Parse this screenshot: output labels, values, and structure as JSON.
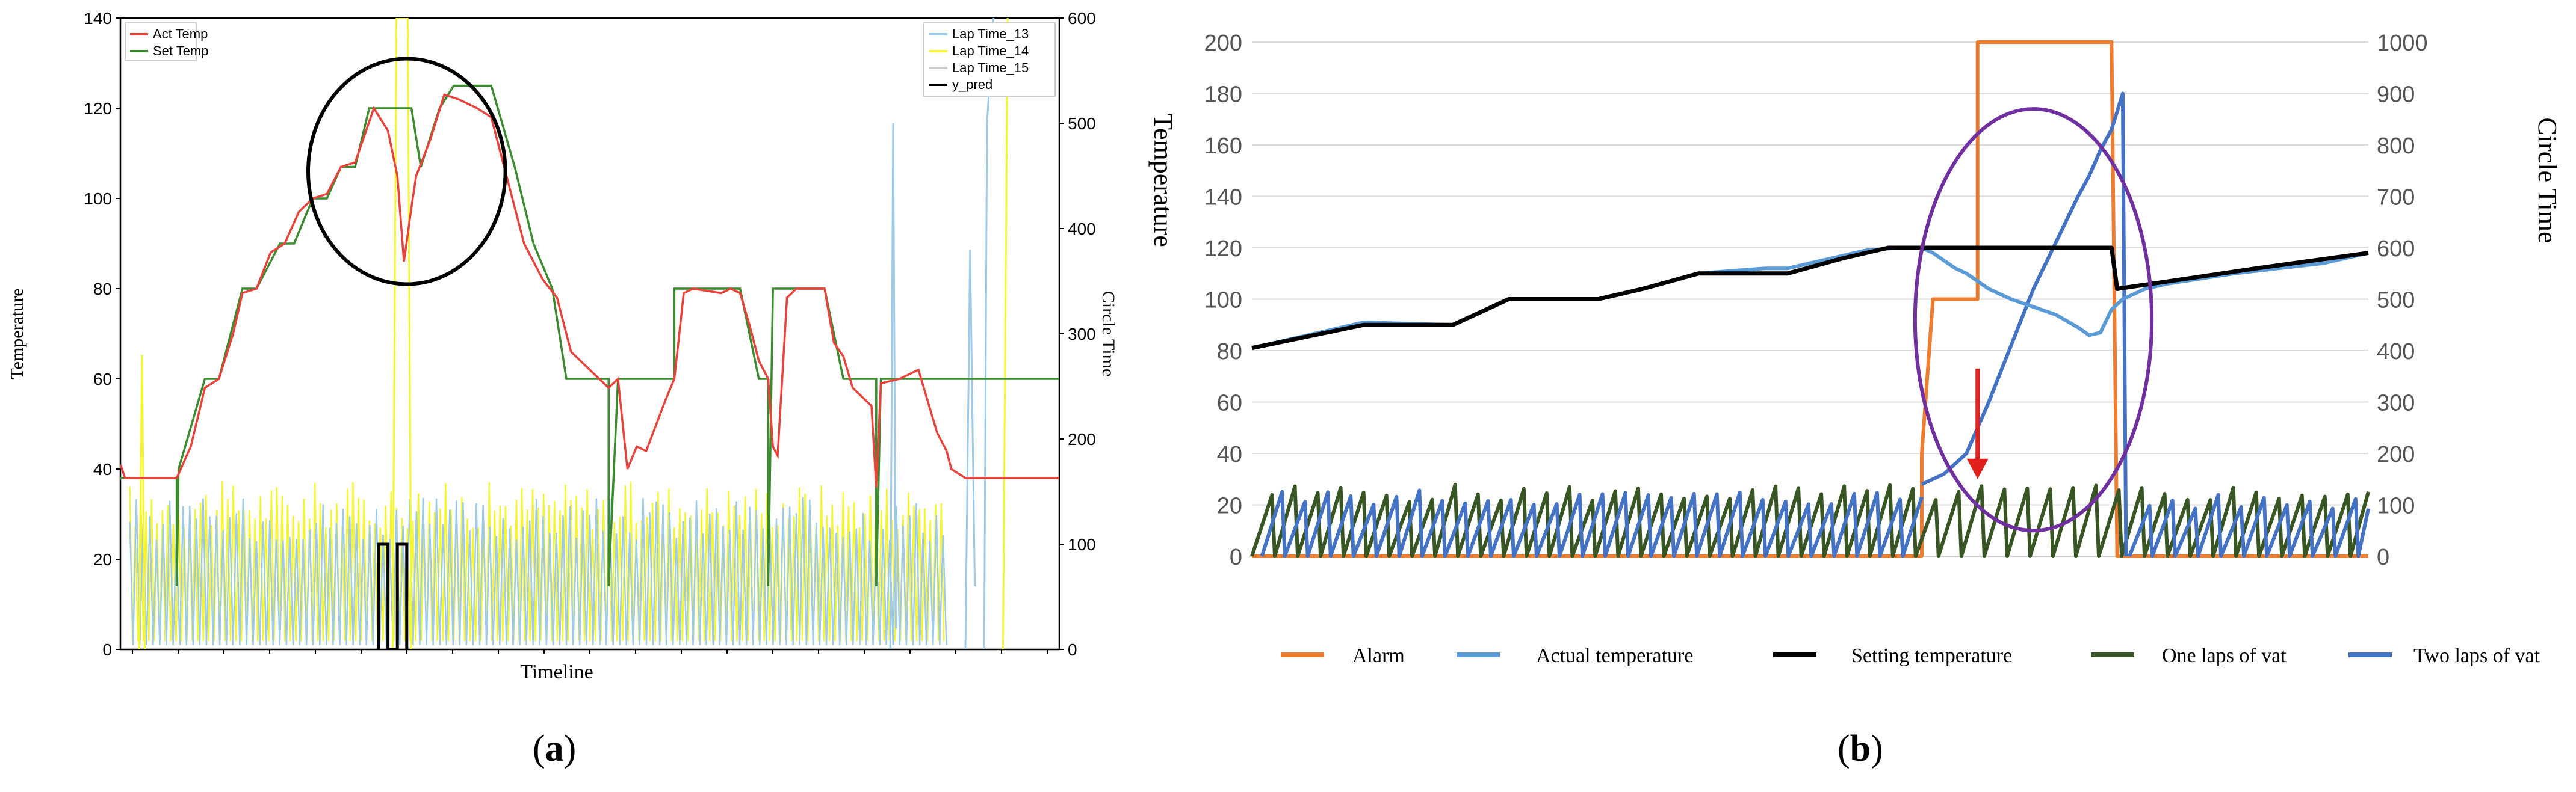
{
  "captions": {
    "a": "a",
    "b": "b"
  },
  "chart_data": [
    {
      "panel": "a",
      "type": "line",
      "xlabel": "Timeline",
      "ylabel": "Temperature",
      "ylabel_right": "Circle Time",
      "ylim": [
        0,
        140
      ],
      "ylim_right": [
        0,
        600
      ],
      "yticks": [
        0,
        20,
        40,
        60,
        80,
        100,
        120,
        140
      ],
      "yticks_right": [
        0,
        100,
        200,
        300,
        400,
        500,
        600
      ],
      "xlim": [
        0,
        100
      ],
      "legend_left": [
        {
          "name": "Act Temp",
          "color": "#e8423a"
        },
        {
          "name": "Set Temp",
          "color": "#3a8a2e"
        }
      ],
      "legend_right": [
        {
          "name": "Lap Time_13",
          "color": "#9ecae9"
        },
        {
          "name": "Lap Time_14",
          "color": "#f5f530"
        },
        {
          "name": "Lap Time_15",
          "color": "#cccccc"
        },
        {
          "name": "y_pred",
          "color": "#000000"
        }
      ],
      "series": [
        {
          "name": "Set Temp",
          "color": "#3a8a2e",
          "axis": "left",
          "points": [
            [
              0,
              38
            ],
            [
              6,
              38
            ],
            [
              6,
              14
            ],
            [
              6.2,
              40
            ],
            [
              9,
              60
            ],
            [
              10.5,
              60
            ],
            [
              13,
              80
            ],
            [
              14.5,
              80
            ],
            [
              17,
              90
            ],
            [
              18.5,
              90
            ],
            [
              20.5,
              100
            ],
            [
              22,
              100
            ],
            [
              23.5,
              107
            ],
            [
              25,
              107
            ],
            [
              26.5,
              120
            ],
            [
              31,
              120
            ],
            [
              32,
              107
            ],
            [
              34,
              120
            ],
            [
              35.5,
              125
            ],
            [
              39.5,
              125
            ],
            [
              42,
              107
            ],
            [
              44,
              90
            ],
            [
              46,
              80
            ],
            [
              47.5,
              60
            ],
            [
              52,
              60
            ],
            [
              52,
              14
            ],
            [
              53,
              60
            ],
            [
              59,
              60
            ],
            [
              59,
              80
            ],
            [
              66,
              80
            ],
            [
              68,
              60
            ],
            [
              69,
              60
            ],
            [
              69,
              14
            ],
            [
              69.5,
              80
            ],
            [
              75,
              80
            ],
            [
              77,
              60
            ],
            [
              80.5,
              60
            ],
            [
              80.5,
              14
            ],
            [
              81,
              60
            ],
            [
              100,
              60
            ]
          ]
        },
        {
          "name": "Act Temp",
          "color": "#e8423a",
          "axis": "left",
          "points": [
            [
              0,
              41
            ],
            [
              0.5,
              38
            ],
            [
              6,
              38
            ],
            [
              7.5,
              45
            ],
            [
              9,
              58
            ],
            [
              10.5,
              60
            ],
            [
              12,
              70
            ],
            [
              13,
              79
            ],
            [
              14.5,
              80
            ],
            [
              16,
              88
            ],
            [
              17.5,
              90
            ],
            [
              19,
              97
            ],
            [
              20.5,
              100
            ],
            [
              22,
              101
            ],
            [
              23.5,
              107
            ],
            [
              25,
              108
            ],
            [
              27,
              120
            ],
            [
              28.5,
              115
            ],
            [
              29.5,
              105
            ],
            [
              30.2,
              86
            ],
            [
              31,
              98
            ],
            [
              31.5,
              105
            ],
            [
              33,
              113
            ],
            [
              34.5,
              123
            ],
            [
              36,
              122
            ],
            [
              38,
              120
            ],
            [
              39.5,
              118
            ],
            [
              41,
              106
            ],
            [
              43,
              90
            ],
            [
              45,
              82
            ],
            [
              46.5,
              78
            ],
            [
              48,
              66
            ],
            [
              50,
              62
            ],
            [
              52,
              58
            ],
            [
              53,
              60
            ],
            [
              54,
              40
            ],
            [
              55,
              45
            ],
            [
              56,
              44
            ],
            [
              58,
              55
            ],
            [
              59,
              60
            ],
            [
              60,
              79
            ],
            [
              61,
              80
            ],
            [
              64,
              79
            ],
            [
              65,
              80
            ],
            [
              66,
              79
            ],
            [
              67,
              72
            ],
            [
              68,
              64
            ],
            [
              69,
              60
            ],
            [
              69.5,
              45
            ],
            [
              70,
              43
            ],
            [
              71,
              78
            ],
            [
              72,
              80
            ],
            [
              75,
              80
            ],
            [
              76,
              68
            ],
            [
              77,
              65
            ],
            [
              78,
              58
            ],
            [
              80,
              54
            ],
            [
              80.5,
              36
            ],
            [
              81,
              59
            ],
            [
              83,
              60
            ],
            [
              85,
              62
            ],
            [
              86,
              55
            ],
            [
              87,
              48
            ],
            [
              88,
              44
            ],
            [
              88.5,
              40
            ],
            [
              90,
              38
            ],
            [
              93,
              38
            ],
            [
              96,
              38
            ],
            [
              100,
              38
            ]
          ]
        },
        {
          "name": "Lap Time_14",
          "color": "#f5f530",
          "axis": "right",
          "style": "osc",
          "x_from": 1,
          "x_to": 88,
          "period": 0.58,
          "low": 8,
          "high": 160
        },
        {
          "name": "Lap Time_13",
          "color": "#9ecae9",
          "axis": "right",
          "style": "osc",
          "x_from": 1,
          "x_to": 88,
          "period": 0.71,
          "low": 4,
          "high": 145
        }
      ],
      "spikes": [
        {
          "name": "Lap Time_14",
          "color": "#f5f530",
          "points": [
            [
              2,
              0
            ],
            [
              2.3,
              280
            ],
            [
              2.6,
              0
            ]
          ]
        },
        {
          "name": "Lap Time_14",
          "color": "#f5f530",
          "points": [
            [
              29,
              0
            ],
            [
              29.4,
              600
            ],
            [
              30.6,
              600
            ],
            [
              31,
              0
            ]
          ]
        },
        {
          "name": "Lap Time_13",
          "color": "#9ecae9",
          "points": [
            [
              82,
              0
            ],
            [
              82.3,
              500
            ],
            [
              82.6,
              20
            ]
          ]
        },
        {
          "name": "Lap Time_13",
          "color": "#9ecae9",
          "points": [
            [
              90,
              0
            ],
            [
              90.5,
              380
            ],
            [
              91,
              60
            ]
          ]
        },
        {
          "name": "Lap Time_13",
          "color": "#9ecae9",
          "points": [
            [
              92,
              0
            ],
            [
              92.3,
              500
            ],
            [
              93,
              600
            ]
          ]
        },
        {
          "name": "Lap Time_14",
          "color": "#f5f530",
          "points": [
            [
              94,
              0
            ],
            [
              94.5,
              600
            ]
          ]
        }
      ],
      "y_pred": {
        "name": "y_pred",
        "color": "#000000",
        "axis": "right",
        "points": [
          [
            27.5,
            0
          ],
          [
            27.5,
            100
          ],
          [
            28.5,
            100
          ],
          [
            28.5,
            0
          ],
          [
            29.5,
            0
          ],
          [
            29.5,
            100
          ],
          [
            30.5,
            100
          ],
          [
            30.5,
            0
          ]
        ]
      },
      "annotation": {
        "type": "ellipse",
        "color": "#000000",
        "cx": 30.5,
        "cy": 106,
        "rx": 10.5,
        "ry": 25
      }
    },
    {
      "panel": "b",
      "type": "line",
      "ylabel": "Temperature",
      "ylabel_right": "Circle Time",
      "ylim": [
        0,
        200
      ],
      "ylim_right": [
        0,
        1000
      ],
      "yticks": [
        0,
        20,
        40,
        60,
        80,
        100,
        120,
        140,
        160,
        180,
        200
      ],
      "yticks_right": [
        0,
        100,
        200,
        300,
        400,
        500,
        600,
        700,
        800,
        900,
        1000
      ],
      "xlim": [
        0,
        100
      ],
      "legend": [
        {
          "name": "Alarm",
          "color": "#ed7d31"
        },
        {
          "name": "Actual temperature",
          "color": "#5b9bd5"
        },
        {
          "name": "Setting temperature",
          "color": "#000000"
        },
        {
          "name": "One laps of vat",
          "color": "#375623"
        },
        {
          "name": "Two laps of vat",
          "color": "#4472c4"
        }
      ],
      "series": [
        {
          "name": "Alarm",
          "color": "#ed7d31",
          "axis": "left",
          "points": [
            [
              0,
              0
            ],
            [
              60,
              0
            ],
            [
              60,
              40
            ],
            [
              61,
              100
            ],
            [
              65,
              100
            ],
            [
              65,
              200
            ],
            [
              77,
              200
            ],
            [
              77.5,
              0
            ],
            [
              100,
              0
            ]
          ]
        },
        {
          "name": "Setting temperature",
          "color": "#000000",
          "axis": "left",
          "points": [
            [
              0,
              81
            ],
            [
              10,
              90
            ],
            [
              18,
              90
            ],
            [
              23,
              100
            ],
            [
              31,
              100
            ],
            [
              35,
              104
            ],
            [
              40,
              110
            ],
            [
              48,
              110
            ],
            [
              53,
              116
            ],
            [
              57,
              120
            ],
            [
              77,
              120
            ],
            [
              77.5,
              104
            ],
            [
              90,
              112
            ],
            [
              100,
              118
            ]
          ]
        },
        {
          "name": "Actual temperature",
          "color": "#5b9bd5",
          "axis": "left",
          "points": [
            [
              0,
              81
            ],
            [
              10,
              91
            ],
            [
              18,
              90
            ],
            [
              23,
              100
            ],
            [
              31,
              100
            ],
            [
              35,
              104
            ],
            [
              40,
              110
            ],
            [
              46,
              112
            ],
            [
              48,
              112
            ],
            [
              52,
              116
            ],
            [
              55,
              119
            ],
            [
              58,
              120
            ],
            [
              60,
              120
            ],
            [
              61,
              118
            ],
            [
              62,
              115
            ],
            [
              63,
              112
            ],
            [
              64,
              110
            ],
            [
              66,
              104
            ],
            [
              68,
              100
            ],
            [
              70,
              97
            ],
            [
              72,
              94
            ],
            [
              74,
              89
            ],
            [
              75,
              86
            ],
            [
              76,
              87
            ],
            [
              77,
              96
            ],
            [
              78,
              100
            ],
            [
              80,
              104
            ],
            [
              82,
              106
            ],
            [
              85,
              108
            ],
            [
              88,
              110
            ],
            [
              92,
              112
            ],
            [
              96,
              114
            ],
            [
              100,
              118
            ]
          ]
        },
        {
          "name": "One laps of vat",
          "color": "#375623",
          "axis": "right",
          "style": "saw",
          "x_from": 0,
          "x_to": 100,
          "period": 2.05,
          "low": 0,
          "high": 140
        },
        {
          "name": "Two laps of vat",
          "color": "#4472c4",
          "axis": "right",
          "style": "saw",
          "x_from": 0.9,
          "x_to": 60,
          "period": 2.05,
          "low": 0,
          "high": 130
        },
        {
          "name": "Two laps of vat",
          "color": "#4472c4",
          "axis": "right",
          "points": [
            [
              60,
              140
            ],
            [
              62,
              160
            ],
            [
              64,
              200
            ],
            [
              66,
              300
            ],
            [
              68,
              410
            ],
            [
              70,
              520
            ],
            [
              72,
              610
            ],
            [
              74,
              700
            ],
            [
              75,
              740
            ],
            [
              76,
              790
            ],
            [
              77,
              830
            ],
            [
              78,
              900
            ],
            [
              78.3,
              0
            ]
          ]
        },
        {
          "name": "Two laps of vat",
          "color": "#4472c4",
          "axis": "right",
          "style": "saw",
          "x_from": 78.6,
          "x_to": 100,
          "period": 2.05,
          "low": 0,
          "high": 120
        }
      ],
      "arrow": {
        "color": "#e0201a",
        "from": [
          65,
          73
        ],
        "to": [
          65,
          30
        ]
      },
      "annotation": {
        "type": "ellipse",
        "color": "#7030a0",
        "cx": 70,
        "cy": 92,
        "rx": 10.6,
        "ry": 82
      }
    }
  ]
}
